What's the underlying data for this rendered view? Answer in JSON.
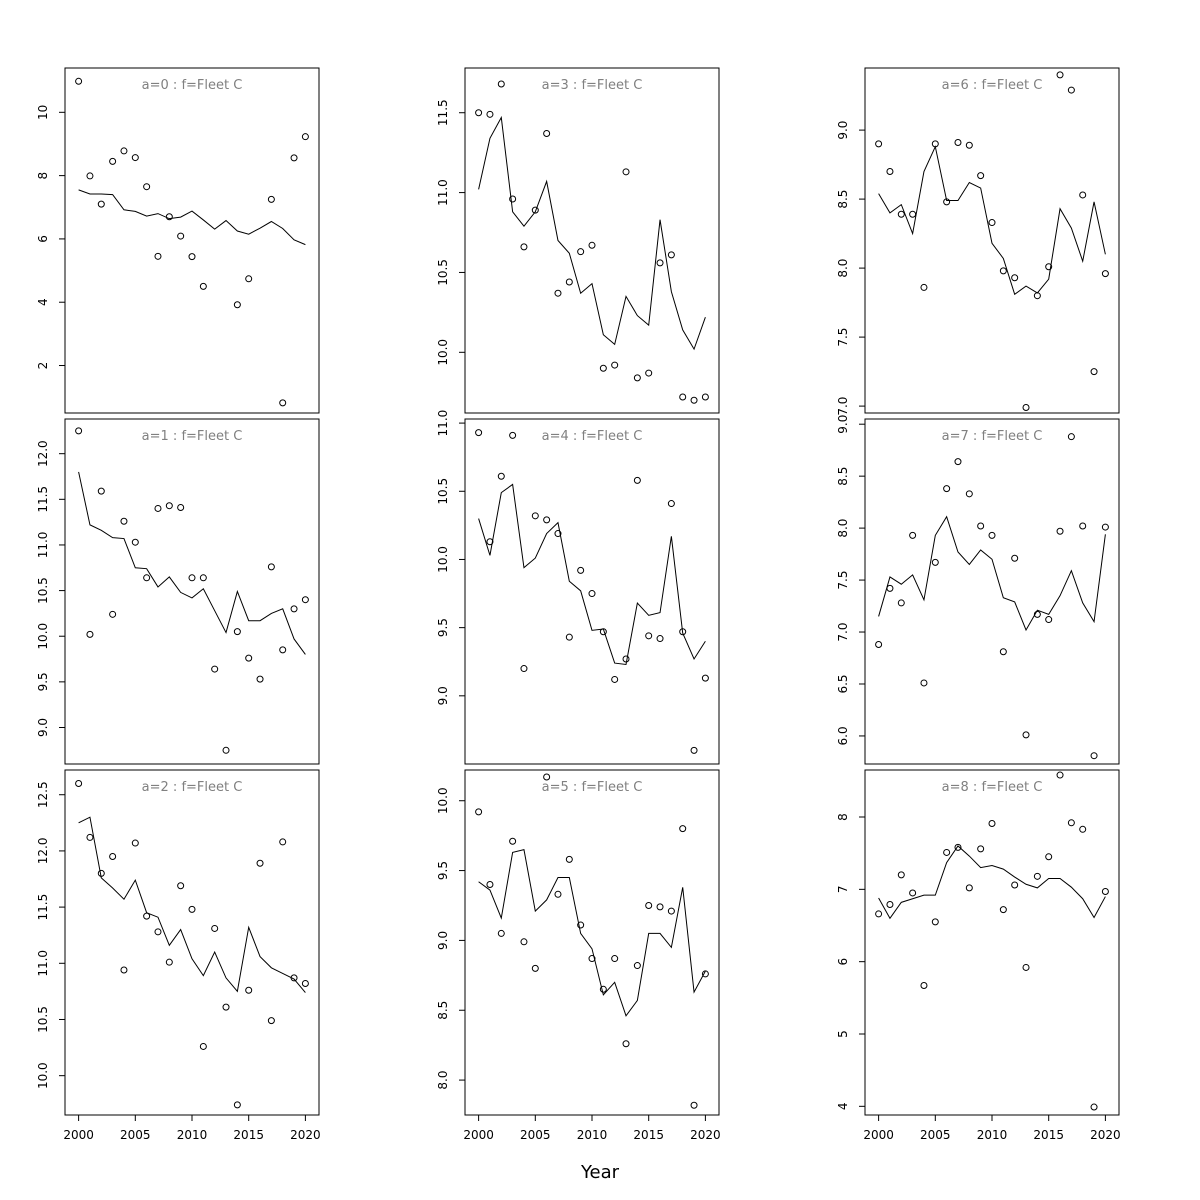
{
  "figure": {
    "xlabel": "Year"
  },
  "chart_data": [
    {
      "type": "scatter",
      "title": "a=0  :  f=Fleet C",
      "x": [
        2000,
        2001,
        2002,
        2003,
        2004,
        2005,
        2006,
        2007,
        2008,
        2009,
        2010,
        2011,
        2012,
        2013,
        2014,
        2015,
        2016,
        2017,
        2018,
        2019,
        2020
      ],
      "series": [
        {
          "values": [
            10.98,
            7.99,
            7.1,
            8.45,
            8.78,
            8.57,
            7.65,
            5.45,
            6.7,
            6.09,
            5.44,
            4.5,
            null,
            null,
            3.92,
            4.74,
            null,
            7.25,
            0.82,
            8.56,
            9.23
          ]
        },
        {
          "type": "line",
          "values": [
            7.55,
            7.42,
            7.42,
            7.4,
            6.92,
            6.87,
            6.72,
            6.8,
            6.64,
            6.69,
            6.88,
            6.6,
            6.31,
            6.58,
            6.25,
            6.15,
            6.34,
            6.55,
            6.33,
            5.97,
            5.82
          ]
        }
      ],
      "xlim": [
        1998.8,
        2021.2
      ],
      "ylim": [
        0.5,
        11.4
      ],
      "yticks": [
        2,
        4,
        6,
        8,
        10
      ]
    },
    {
      "type": "scatter",
      "title": "a=1  :  f=Fleet C",
      "x": [
        2000,
        2001,
        2002,
        2003,
        2004,
        2005,
        2006,
        2007,
        2008,
        2009,
        2010,
        2011,
        2012,
        2013,
        2014,
        2015,
        2016,
        2017,
        2018,
        2019,
        2020
      ],
      "series": [
        {
          "values": [
            12.25,
            10.02,
            11.59,
            10.24,
            11.26,
            11.03,
            10.64,
            11.4,
            11.43,
            11.41,
            10.64,
            10.64,
            9.64,
            8.75,
            10.05,
            9.76,
            9.53,
            10.76,
            9.85,
            10.3,
            10.4
          ]
        },
        {
          "type": "line",
          "values": [
            11.8,
            11.22,
            11.16,
            11.08,
            11.07,
            10.75,
            10.74,
            10.54,
            10.65,
            10.48,
            10.42,
            10.52,
            10.28,
            10.04,
            10.49,
            10.17,
            10.17,
            10.25,
            10.3,
            9.97,
            9.8
          ]
        }
      ],
      "xlim": [
        1998.8,
        2021.2
      ],
      "ylim": [
        8.6,
        12.38
      ],
      "yticks": [
        9.0,
        9.5,
        10.0,
        10.5,
        11.0,
        11.5,
        12.0
      ]
    },
    {
      "type": "scatter",
      "title": "a=2  :  f=Fleet C",
      "x": [
        2000,
        2001,
        2002,
        2003,
        2004,
        2005,
        2006,
        2007,
        2008,
        2009,
        2010,
        2011,
        2012,
        2013,
        2014,
        2015,
        2016,
        2017,
        2018,
        2019,
        2020
      ],
      "series": [
        {
          "values": [
            12.6,
            12.12,
            11.8,
            11.95,
            10.94,
            12.07,
            11.42,
            11.28,
            11.01,
            11.69,
            11.48,
            10.26,
            11.31,
            10.61,
            9.74,
            10.76,
            11.89,
            10.49,
            12.08,
            10.87,
            10.82
          ]
        },
        {
          "type": "line",
          "values": [
            12.25,
            12.3,
            11.76,
            11.67,
            11.57,
            11.74,
            11.45,
            11.41,
            11.16,
            11.3,
            11.04,
            10.89,
            11.1,
            10.87,
            10.75,
            11.32,
            11.06,
            10.96,
            10.91,
            10.86,
            10.74
          ]
        }
      ],
      "xlim": [
        1998.8,
        2021.2
      ],
      "ylim": [
        9.65,
        12.72
      ],
      "yticks": [
        10.0,
        10.5,
        11.0,
        11.5,
        12.0,
        12.5
      ]
    },
    {
      "type": "scatter",
      "title": "a=3  :  f=Fleet C",
      "x": [
        2000,
        2001,
        2002,
        2003,
        2004,
        2005,
        2006,
        2007,
        2008,
        2009,
        2010,
        2011,
        2012,
        2013,
        2014,
        2015,
        2016,
        2017,
        2018,
        2019,
        2020
      ],
      "series": [
        {
          "values": [
            11.5,
            11.49,
            11.68,
            10.96,
            10.66,
            10.89,
            11.37,
            10.37,
            10.44,
            10.63,
            10.67,
            9.9,
            9.92,
            11.13,
            9.84,
            9.87,
            10.56,
            10.61,
            9.72,
            9.7,
            9.72
          ]
        },
        {
          "type": "line",
          "values": [
            11.02,
            11.34,
            11.47,
            10.88,
            10.79,
            10.88,
            11.07,
            10.7,
            10.62,
            10.37,
            10.43,
            10.11,
            10.05,
            10.35,
            10.23,
            10.17,
            10.83,
            10.38,
            10.14,
            10.02,
            10.22
          ]
        }
      ],
      "xlim": [
        1998.8,
        2021.2
      ],
      "ylim": [
        9.62,
        11.78
      ],
      "yticks": [
        10.0,
        10.5,
        11.0,
        11.5
      ]
    },
    {
      "type": "scatter",
      "title": "a=4  :  f=Fleet C",
      "x": [
        2000,
        2001,
        2002,
        2003,
        2004,
        2005,
        2006,
        2007,
        2008,
        2009,
        2010,
        2011,
        2012,
        2013,
        2014,
        2015,
        2016,
        2017,
        2018,
        2019,
        2020
      ],
      "series": [
        {
          "values": [
            10.93,
            10.13,
            10.61,
            10.91,
            9.2,
            10.32,
            10.29,
            10.19,
            9.43,
            9.92,
            9.75,
            9.47,
            9.12,
            9.27,
            10.58,
            9.44,
            9.42,
            10.41,
            9.47,
            8.6,
            9.13
          ]
        },
        {
          "type": "line",
          "values": [
            10.3,
            10.03,
            10.49,
            10.55,
            9.94,
            10.01,
            10.19,
            10.27,
            9.84,
            9.77,
            9.48,
            9.49,
            9.24,
            9.23,
            9.68,
            9.59,
            9.61,
            10.17,
            9.46,
            9.27,
            9.4
          ]
        }
      ],
      "xlim": [
        1998.8,
        2021.2
      ],
      "ylim": [
        8.5,
        11.03
      ],
      "yticks": [
        9.0,
        9.5,
        10.0,
        10.5,
        11.0
      ]
    },
    {
      "type": "scatter",
      "title": "a=5  :  f=Fleet C",
      "x": [
        2000,
        2001,
        2002,
        2003,
        2004,
        2005,
        2006,
        2007,
        2008,
        2009,
        2010,
        2011,
        2012,
        2013,
        2014,
        2015,
        2016,
        2017,
        2018,
        2019,
        2020
      ],
      "series": [
        {
          "values": [
            9.92,
            9.4,
            9.05,
            9.71,
            8.99,
            8.8,
            10.17,
            9.33,
            9.58,
            9.11,
            8.87,
            8.65,
            8.87,
            8.26,
            8.82,
            9.25,
            9.24,
            9.21,
            9.8,
            7.82,
            8.76
          ]
        },
        {
          "type": "line",
          "values": [
            9.42,
            9.36,
            9.16,
            9.63,
            9.65,
            9.21,
            9.29,
            9.45,
            9.45,
            9.05,
            8.94,
            8.61,
            8.7,
            8.46,
            8.57,
            9.05,
            9.05,
            8.95,
            9.38,
            8.63,
            8.78
          ]
        }
      ],
      "xlim": [
        1998.8,
        2021.2
      ],
      "ylim": [
        7.75,
        10.22
      ],
      "yticks": [
        8.0,
        8.5,
        9.0,
        9.5,
        10.0
      ]
    },
    {
      "type": "scatter",
      "title": "a=6  :  f=Fleet C",
      "x": [
        2000,
        2001,
        2002,
        2003,
        2004,
        2005,
        2006,
        2007,
        2008,
        2009,
        2010,
        2011,
        2012,
        2013,
        2014,
        2015,
        2016,
        2017,
        2018,
        2019,
        2020
      ],
      "series": [
        {
          "values": [
            8.9,
            8.7,
            8.39,
            8.39,
            7.86,
            8.9,
            8.48,
            8.91,
            8.89,
            8.67,
            8.33,
            7.98,
            7.93,
            6.99,
            7.8,
            8.01,
            9.4,
            9.29,
            8.53,
            7.25,
            7.96
          ]
        },
        {
          "type": "line",
          "values": [
            8.54,
            8.4,
            8.46,
            8.25,
            8.7,
            8.88,
            8.49,
            8.49,
            8.62,
            8.58,
            8.18,
            8.07,
            7.81,
            7.87,
            7.82,
            7.92,
            8.43,
            8.29,
            8.05,
            8.48,
            8.1
          ]
        }
      ],
      "xlim": [
        1998.8,
        2021.2
      ],
      "ylim": [
        6.95,
        9.45
      ],
      "yticks": [
        7.0,
        7.5,
        8.0,
        8.5,
        9.0
      ]
    },
    {
      "type": "scatter",
      "title": "a=7  :  f=Fleet C",
      "x": [
        2000,
        2001,
        2002,
        2003,
        2004,
        2005,
        2006,
        2007,
        2008,
        2009,
        2010,
        2011,
        2012,
        2013,
        2014,
        2015,
        2016,
        2017,
        2018,
        2019,
        2020
      ],
      "series": [
        {
          "values": [
            6.88,
            7.42,
            7.28,
            7.93,
            6.51,
            7.67,
            8.38,
            8.64,
            8.33,
            8.02,
            7.93,
            6.81,
            7.71,
            6.01,
            7.17,
            7.12,
            7.97,
            8.88,
            8.02,
            5.81,
            8.01
          ]
        },
        {
          "type": "line",
          "values": [
            7.15,
            7.53,
            7.46,
            7.55,
            7.31,
            7.93,
            8.11,
            7.77,
            7.65,
            7.79,
            7.7,
            7.33,
            7.29,
            7.02,
            7.21,
            7.17,
            7.35,
            7.59,
            7.28,
            7.1,
            7.94
          ]
        }
      ],
      "xlim": [
        1998.8,
        2021.2
      ],
      "ylim": [
        5.73,
        9.05
      ],
      "yticks": [
        6.0,
        6.5,
        7.0,
        7.5,
        8.0,
        8.5,
        9.0
      ]
    },
    {
      "type": "scatter",
      "title": "a=8  :  f=Fleet C",
      "x": [
        2000,
        2001,
        2002,
        2003,
        2004,
        2005,
        2006,
        2007,
        2008,
        2009,
        2010,
        2011,
        2012,
        2013,
        2014,
        2015,
        2016,
        2017,
        2018,
        2019,
        2020
      ],
      "series": [
        {
          "values": [
            6.66,
            6.79,
            7.2,
            6.95,
            5.67,
            6.55,
            7.51,
            7.58,
            7.02,
            7.56,
            7.91,
            6.72,
            7.06,
            5.92,
            7.18,
            7.45,
            8.58,
            7.92,
            7.83,
            3.99,
            6.97
          ]
        },
        {
          "type": "line",
          "values": [
            6.88,
            6.6,
            6.82,
            6.87,
            6.92,
            6.92,
            7.37,
            7.6,
            7.46,
            7.3,
            7.33,
            7.28,
            7.17,
            7.07,
            7.02,
            7.15,
            7.15,
            7.03,
            6.87,
            6.61,
            6.9
          ]
        }
      ],
      "xlim": [
        1998.8,
        2021.2
      ],
      "ylim": [
        3.88,
        8.65
      ],
      "yticks": [
        4,
        5,
        6,
        7,
        8
      ]
    }
  ]
}
